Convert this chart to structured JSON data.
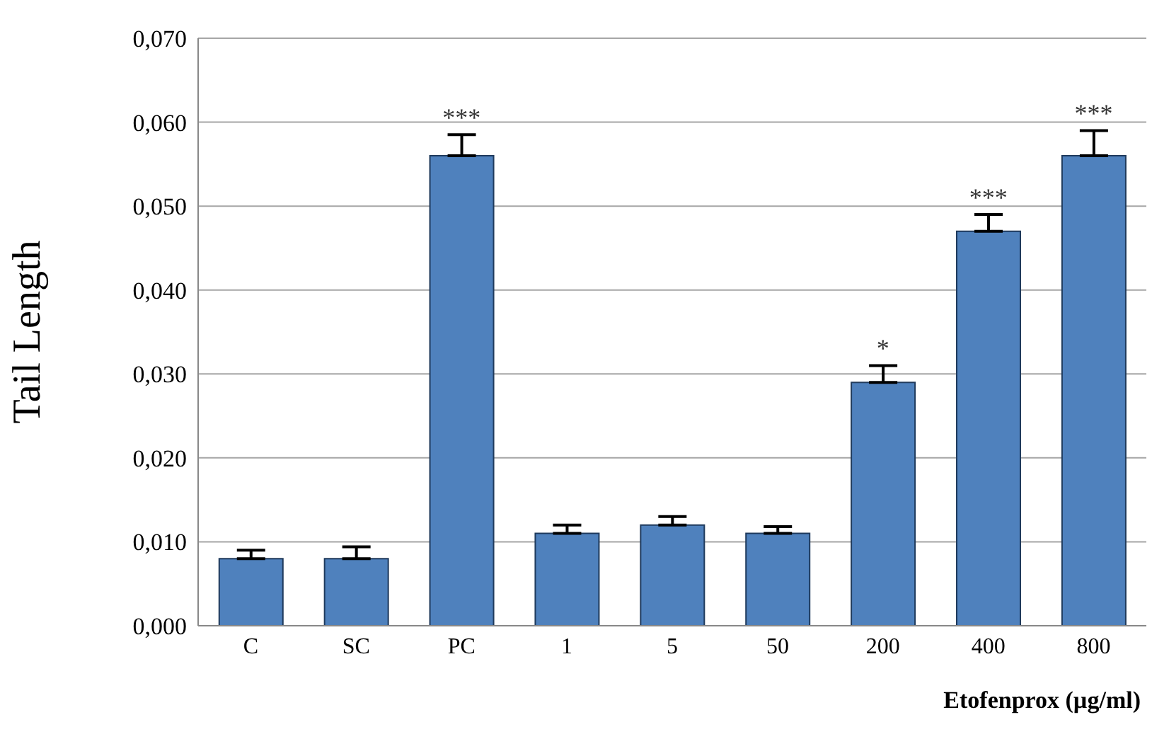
{
  "chart_data": {
    "type": "bar",
    "ylabel": "Tail Length",
    "xlabel": "Etofenprox (µg/ml)",
    "categories": [
      "C",
      "SC",
      "PC",
      "1",
      "5",
      "50",
      "200",
      "400",
      "800"
    ],
    "values": [
      0.008,
      0.008,
      0.056,
      0.011,
      0.012,
      0.011,
      0.029,
      0.047,
      0.056
    ],
    "errors": [
      [
        0.008,
        0.009
      ],
      [
        0.008,
        0.0094
      ],
      [
        0.056,
        0.0585
      ],
      [
        0.011,
        0.012
      ],
      [
        0.012,
        0.013
      ],
      [
        0.011,
        0.0118
      ],
      [
        0.029,
        0.031
      ],
      [
        0.047,
        0.049
      ],
      [
        0.056,
        0.059
      ]
    ],
    "color": "#4f81bd",
    "ylim": [
      0,
      0.07
    ],
    "yticks": [
      {
        "value": 0,
        "label": "0,000"
      },
      {
        "value": 0.01,
        "label": "0,010"
      },
      {
        "value": 0.02,
        "label": "0,020"
      },
      {
        "value": 0.03,
        "label": "0,030"
      },
      {
        "value": 0.04,
        "label": "0,040"
      },
      {
        "value": 0.05,
        "label": "0,050"
      },
      {
        "value": 0.06,
        "label": "0,060"
      },
      {
        "value": 0.07,
        "label": "0,070"
      }
    ],
    "grid": "y",
    "legend": false,
    "annotations": [
      {
        "text": "***",
        "x": "PC",
        "y": 0.0585
      },
      {
        "text": "*",
        "x": "200",
        "y": 0.031
      },
      {
        "text": "***",
        "x": "400",
        "y": 0.049
      },
      {
        "text": "***",
        "x": "800",
        "y": 0.059
      }
    ]
  }
}
